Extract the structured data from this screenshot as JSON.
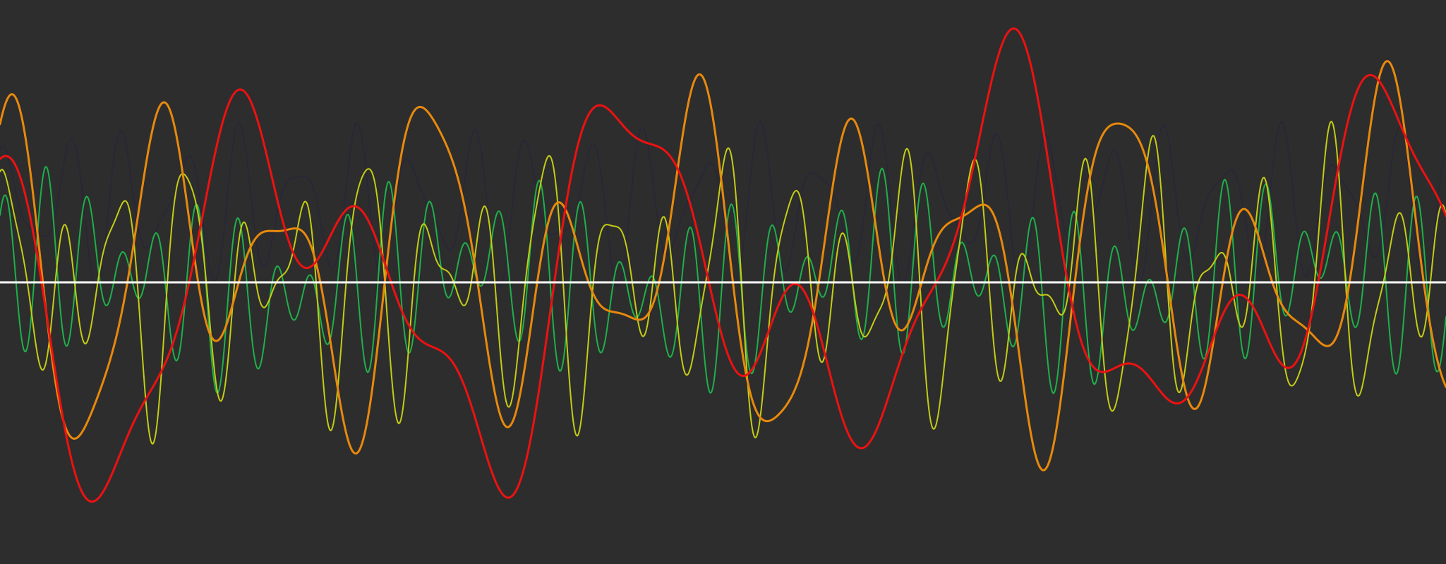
{
  "chart_data": {
    "type": "line",
    "title": "",
    "xlabel": "",
    "ylabel": "",
    "xlim": [
      0,
      1
    ],
    "ylim": [
      -1,
      1
    ],
    "grid": false,
    "baseline": {
      "y": 0,
      "color": "#ffffff"
    },
    "series": [
      {
        "color": "#29253a",
        "width": 1.5,
        "components": [
          {
            "amp": 0.2,
            "freq": 25.0,
            "phase": 0.6
          },
          {
            "amp": 0.1,
            "freq": 36.0,
            "phase": 2.1
          }
        ],
        "offset": 0.28
      },
      {
        "color": "#1eb04a",
        "width": 2,
        "components": [
          {
            "amp": 0.2,
            "freq": 38.0,
            "phase": 0.3
          },
          {
            "amp": 0.14,
            "freq": 29.5,
            "phase": 1.9
          },
          {
            "amp": 0.08,
            "freq": 3.5,
            "phase": 0.7
          }
        ],
        "offset": 0
      },
      {
        "color": "#c4cc14",
        "width": 2,
        "components": [
          {
            "amp": 0.3,
            "freq": 24.0,
            "phase": 1.2
          },
          {
            "amp": 0.2,
            "freq": 16.5,
            "phase": 0.4
          },
          {
            "amp": 0.1,
            "freq": 41.0,
            "phase": 2.7
          }
        ],
        "offset": 0
      },
      {
        "color": "#e8890c",
        "width": 3,
        "components": [
          {
            "amp": 0.42,
            "freq": 10.5,
            "phase": 0.9
          },
          {
            "amp": 0.25,
            "freq": 6.2,
            "phase": 2.4
          },
          {
            "amp": 0.12,
            "freq": 19.0,
            "phase": 0.2
          }
        ],
        "offset": 0.05
      },
      {
        "color": "#ee1111",
        "width": 3,
        "components": [
          {
            "amp": 0.5,
            "freq": 4.0,
            "phase": 2.9
          },
          {
            "amp": 0.28,
            "freq": 7.3,
            "phase": 1.1
          },
          {
            "amp": 0.16,
            "freq": 13.0,
            "phase": 0.5
          }
        ],
        "offset": 0
      }
    ]
  }
}
